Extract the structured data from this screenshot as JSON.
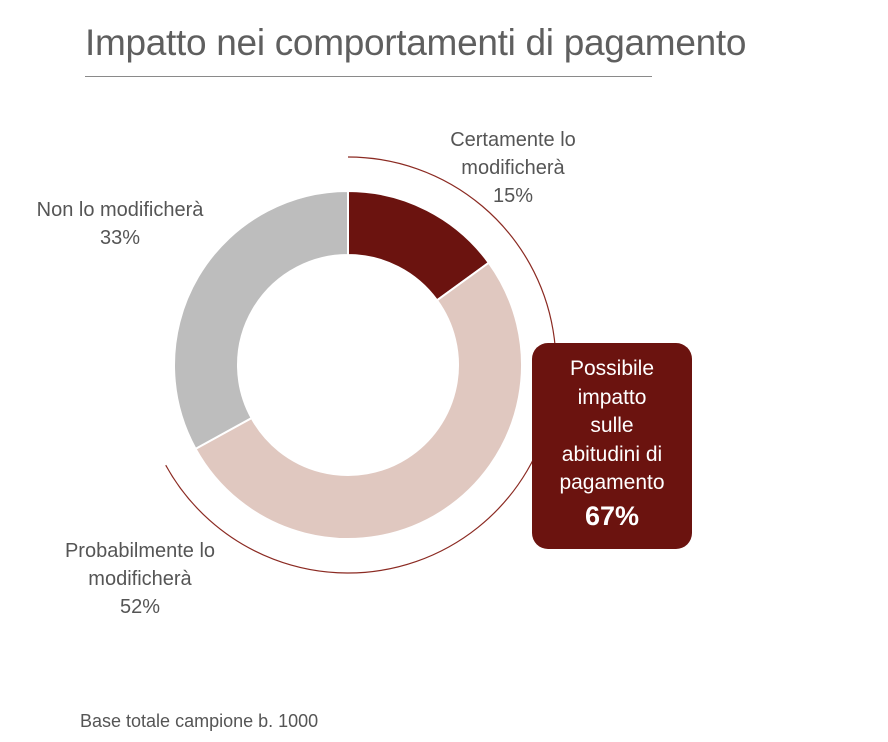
{
  "title": "Impatto nei comportamenti di pagamento",
  "footnote": "Base totale campione b. 1000",
  "callout": {
    "text": "Possibile\nimpatto\nsulle\nabitudini di\npagamento",
    "value": "67%"
  },
  "chart_data": {
    "type": "pie",
    "variant": "donut",
    "categories": [
      "Certamente lo modificherà",
      "Probabilmente lo modificherà",
      "Non lo modificherà"
    ],
    "values": [
      15,
      52,
      33
    ],
    "unit": "%",
    "colors": [
      "#6b130f",
      "#e0c8c0",
      "#bdbdbd"
    ],
    "labels": [
      {
        "lines": [
          "Certamente lo",
          "modificherà"
        ],
        "value": "15%"
      },
      {
        "lines": [
          "Probabilmente lo",
          "modificherà"
        ],
        "value": "52%"
      },
      {
        "lines": [
          "Non lo modificherà"
        ],
        "value": "33%"
      }
    ],
    "annotation": {
      "spans_categories": [
        "Certamente lo modificherà",
        "Probabilmente lo modificherà"
      ],
      "value": "67%",
      "arc_color": "#8b2a22"
    }
  }
}
